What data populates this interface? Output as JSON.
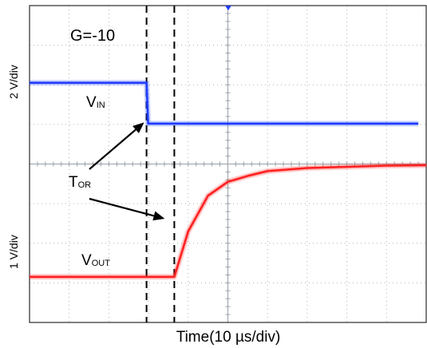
{
  "chart_data": {
    "type": "line",
    "annotation_gain": "G=-10",
    "xlabel": "Time(10 µs/div)",
    "ylabel_top": "2 V/div",
    "ylabel_bottom": "1 V/div",
    "x_unit": "µs",
    "x_range": [
      -50,
      50
    ],
    "grid": true,
    "divisions": {
      "x": 10,
      "y": 8
    },
    "trigger_marker": true,
    "series": [
      {
        "name": "V",
        "subscript": "IN",
        "color": "#1f3cff",
        "x": [
          -50,
          -20.5,
          -20.1,
          48
        ],
        "y_div": [
          2.05,
          2.05,
          1.02,
          1.02
        ]
      },
      {
        "name": "V",
        "subscript": "OUT",
        "color": "#ff2020",
        "x": [
          -50,
          -13.5,
          -10,
          -5,
          0,
          5,
          10,
          20,
          30,
          40,
          50
        ],
        "y_div": [
          -2.85,
          -2.85,
          -1.7,
          -0.8,
          -0.45,
          -0.3,
          -0.18,
          -0.1,
          -0.07,
          -0.04,
          -0.03
        ]
      }
    ],
    "cursors": [
      {
        "x": -20.5,
        "style": "dashed"
      },
      {
        "x": -13.5,
        "style": "dashed"
      }
    ],
    "annotations": [
      {
        "text": "T",
        "subscript": "OR",
        "points_to_x": [
          -20.5,
          -13.5
        ]
      }
    ]
  }
}
